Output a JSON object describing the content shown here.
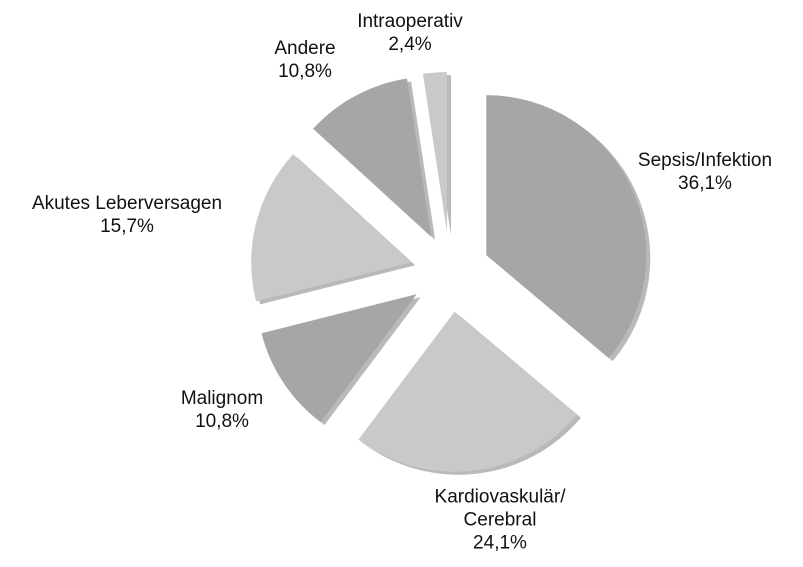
{
  "chart_data": {
    "type": "pie",
    "categories": [
      "Sepsis/Infektion",
      "Kardiovaskulär/\nCerebral",
      "Malignom",
      "Akutes Leberversagen",
      "Andere",
      "Intraoperativ"
    ],
    "values": [
      36.1,
      24.1,
      10.8,
      15.7,
      10.8,
      2.4
    ],
    "value_labels": [
      "36,1%",
      "24,1%",
      "10,8%",
      "15,7%",
      "10,8%",
      "2,4%"
    ],
    "colors": [
      "#a6a6a6",
      "#c9c9c9",
      "#a6a6a6",
      "#c9c9c9",
      "#a6a6a6",
      "#c9c9c9"
    ]
  }
}
